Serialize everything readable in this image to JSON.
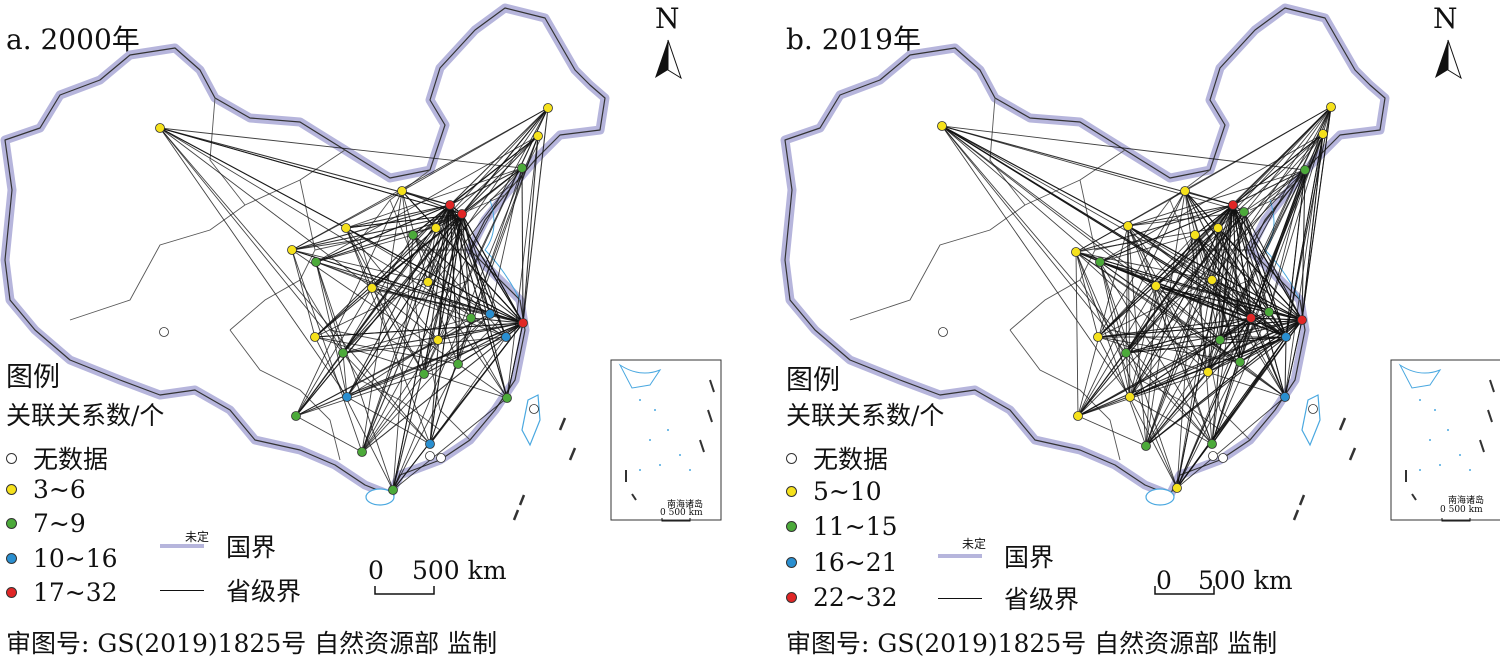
{
  "panels": [
    {
      "id": "a",
      "title": "a. 2000年",
      "north_label": "N",
      "legend": {
        "title": "图例",
        "subtitle": "关联关系数/个",
        "items": [
          {
            "label": "无数据",
            "color": "#ffffff"
          },
          {
            "label": "3~6",
            "color": "#f5e11c"
          },
          {
            "label": "7~9",
            "color": "#4caa3a"
          },
          {
            "label": "10~16",
            "color": "#2a8fd0"
          },
          {
            "label": "17~32",
            "color": "#e02626"
          }
        ]
      },
      "boundaries": {
        "undetermined_label": "未定",
        "national": "国界",
        "provincial": "省级界"
      },
      "scale": {
        "zero": "0",
        "value": "500 km"
      },
      "inset_caption": "南海诸岛",
      "inset_scale": "0 500 km",
      "approval": "审图号: GS(2019)1825号  自然资源部 监制"
    },
    {
      "id": "b",
      "title": "b. 2019年",
      "north_label": "N",
      "legend": {
        "title": "图例",
        "subtitle": "关联关系数/个",
        "items": [
          {
            "label": "无数据",
            "color": "#ffffff"
          },
          {
            "label": "5~10",
            "color": "#f5e11c"
          },
          {
            "label": "11~15",
            "color": "#4caa3a"
          },
          {
            "label": "16~21",
            "color": "#2a8fd0"
          },
          {
            "label": "22~32",
            "color": "#e02626"
          }
        ]
      },
      "boundaries": {
        "undetermined_label": "未定",
        "national": "国界",
        "provincial": "省级界"
      },
      "scale": {
        "zero": "0",
        "value": "500 km"
      },
      "inset_caption": "南海诸岛",
      "inset_scale": "0 500 km",
      "approval": "审图号: GS(2019)1825号  自然资源部 监制"
    }
  ],
  "colors": {
    "yellow": "#f5e11c",
    "green": "#4caa3a",
    "blue": "#2a8fd0",
    "red": "#e02626",
    "border_glow": "#b6b5dc",
    "sea": "#4aa8e0"
  }
}
